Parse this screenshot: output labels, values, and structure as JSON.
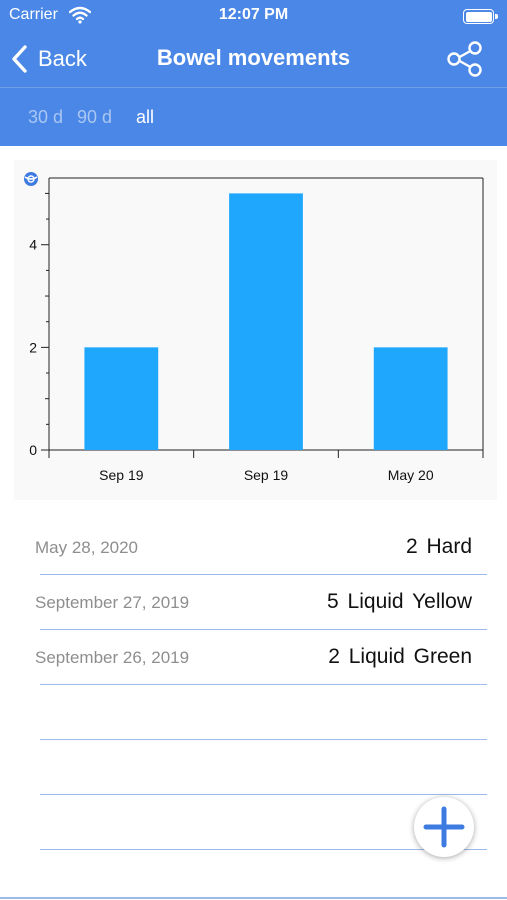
{
  "status_bar": {
    "carrier": "Carrier",
    "time": "12:07 PM"
  },
  "nav": {
    "back_label": "Back",
    "title": "Bowel movements"
  },
  "ranges": [
    {
      "label": "30 d",
      "active": false
    },
    {
      "label": "90 d",
      "active": false
    },
    {
      "label": "all",
      "active": true
    }
  ],
  "chart_data": {
    "type": "bar",
    "categories": [
      "Sep 19",
      "Sep 19",
      "May 20"
    ],
    "values": [
      2,
      5,
      2
    ],
    "title": "",
    "xlabel": "",
    "ylabel": "",
    "ylim": [
      0,
      5.3
    ],
    "y_ticks": [
      "0",
      "2",
      "4"
    ],
    "bar_color": "#1EA7FD",
    "grid": false,
    "legend": "none"
  },
  "entries": [
    {
      "date": "May 28, 2020",
      "value": "2 Hard"
    },
    {
      "date": "September 27, 2019",
      "value": "5 Liquid Yellow"
    },
    {
      "date": "September 26, 2019",
      "value": "2 Liquid Green"
    }
  ],
  "colors": {
    "accent": "#4A87E6",
    "bar": "#1EA7FD",
    "divider": "#9dbbe8"
  },
  "icons": {
    "back": "chevron-left-icon",
    "share": "share-icon",
    "add": "plus-icon",
    "chart_reset": "globe-icon"
  }
}
